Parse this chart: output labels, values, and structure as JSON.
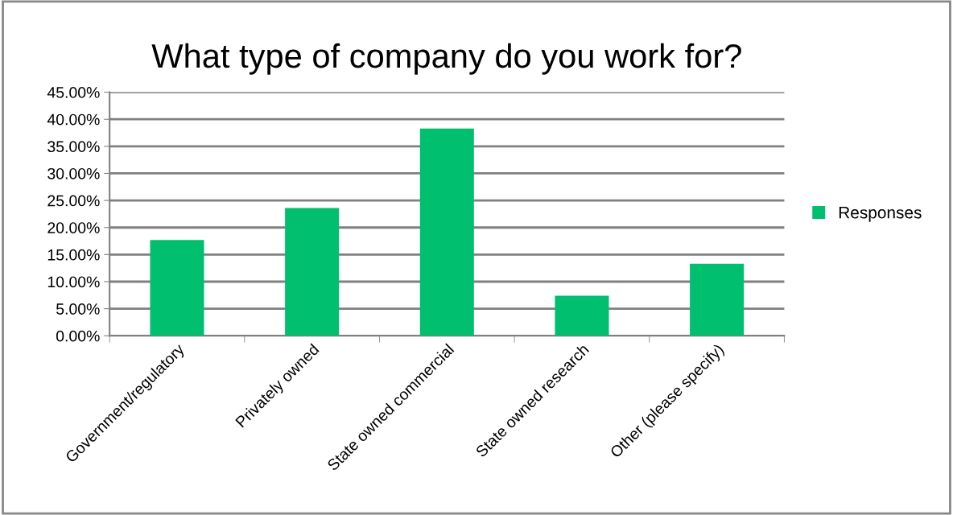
{
  "chart_data": {
    "type": "bar",
    "title": "What type of company do you work for?",
    "categories": [
      "Government/regulatory",
      "Privately owned",
      "State owned commercial",
      "State owned research",
      "Other (please specify)"
    ],
    "series": [
      {
        "name": "Responses",
        "color": "#00bf6f",
        "values": [
          17.7,
          23.6,
          38.3,
          7.4,
          13.3
        ]
      }
    ],
    "ylim": [
      0,
      45
    ],
    "yticks": [
      {
        "value": 0,
        "label": "0.00%"
      },
      {
        "value": 5,
        "label": "5.00%"
      },
      {
        "value": 10,
        "label": "10.00%"
      },
      {
        "value": 15,
        "label": "15.00%"
      },
      {
        "value": 20,
        "label": "20.00%"
      },
      {
        "value": 25,
        "label": "25.00%"
      },
      {
        "value": 30,
        "label": "30.00%"
      },
      {
        "value": 35,
        "label": "35.00%"
      },
      {
        "value": 40,
        "label": "40.00%"
      },
      {
        "value": 45,
        "label": "45.00%"
      }
    ],
    "grid": "y",
    "legend": "right"
  }
}
